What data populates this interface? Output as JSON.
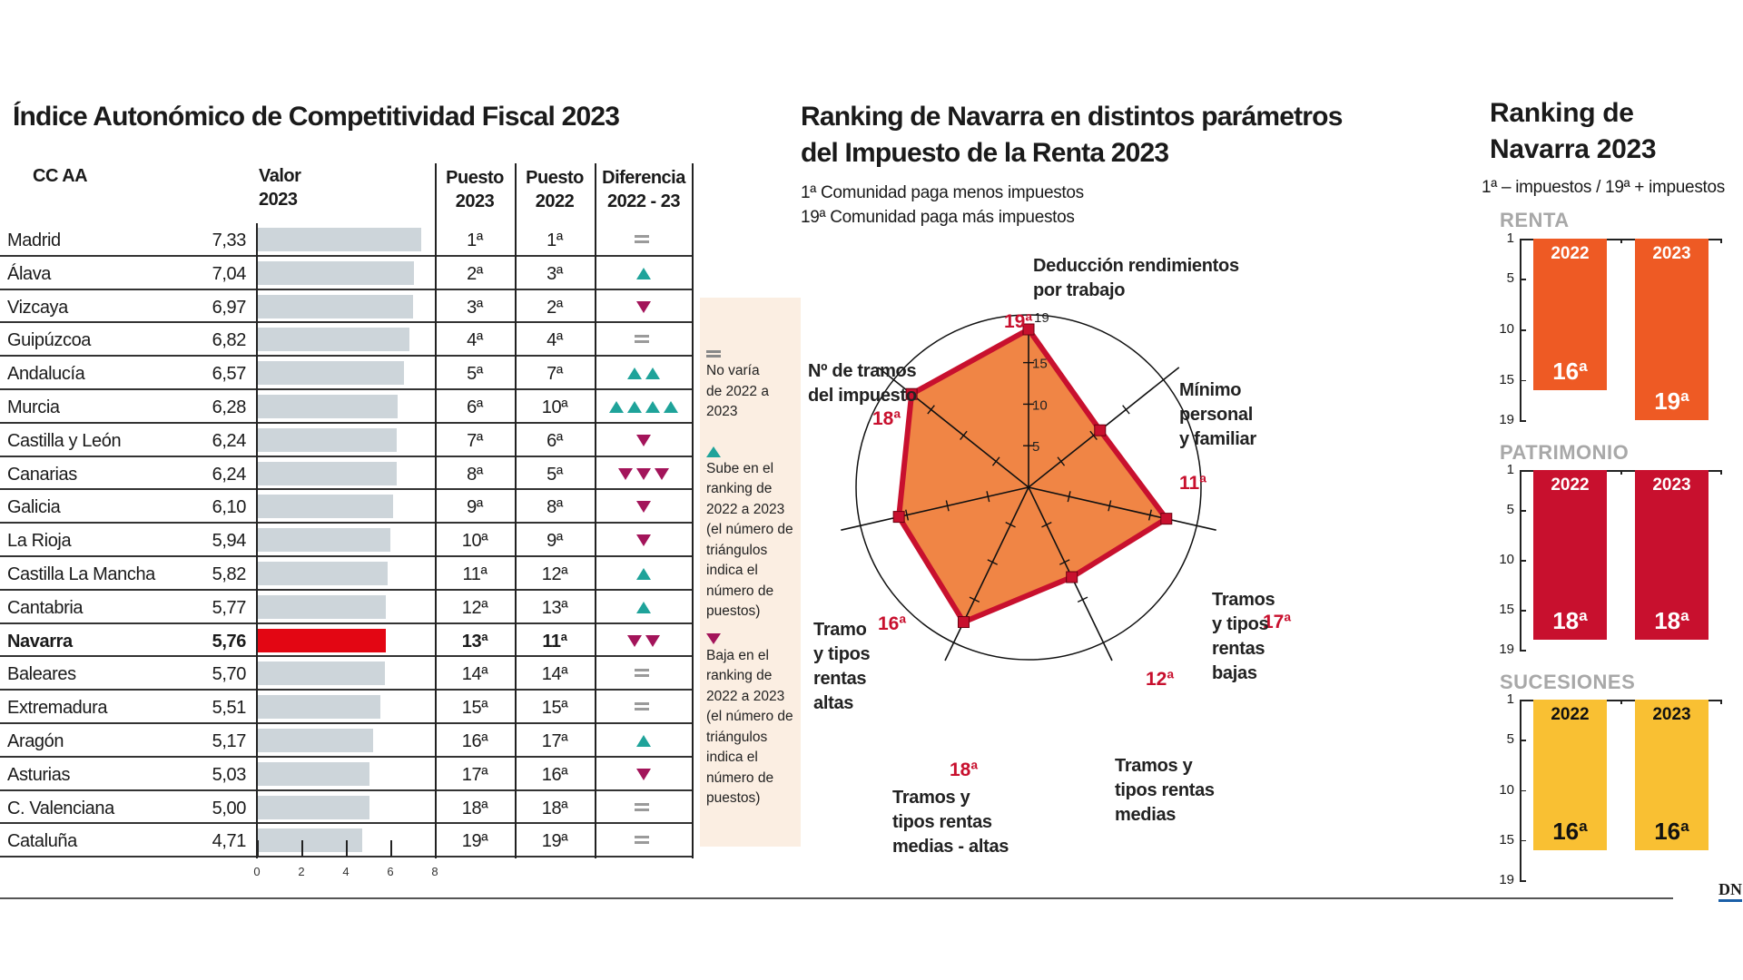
{
  "table": {
    "title": "Índice Autonómico de Competitividad Fiscal  2023",
    "headers": {
      "ccaa": "CC AA",
      "valor": [
        "Valor",
        "2023"
      ],
      "p2023": [
        "Puesto",
        "2023"
      ],
      "p2022": [
        "Puesto",
        "2022"
      ],
      "diff": [
        "Diferencia",
        "2022 - 23"
      ]
    },
    "axis_ticks": [
      "0",
      "2",
      "4",
      "6",
      "8"
    ],
    "bar_color": "#cdd5da",
    "highlight_color": "#e30613",
    "up_color": "#1fa39a",
    "down_color": "#a3145a",
    "equal_color": "#9a9a9a",
    "rows": [
      {
        "name": "Madrid",
        "value": 7.33,
        "value_label": "7,33",
        "p2023": "1ª",
        "p2022": "1ª",
        "diff": "equal",
        "count": 1
      },
      {
        "name": "Álava",
        "value": 7.04,
        "value_label": "7,04",
        "p2023": "2ª",
        "p2022": "3ª",
        "diff": "up",
        "count": 1
      },
      {
        "name": "Vizcaya",
        "value": 6.97,
        "value_label": "6,97",
        "p2023": "3ª",
        "p2022": "2ª",
        "diff": "down",
        "count": 1
      },
      {
        "name": "Guipúzcoa",
        "value": 6.82,
        "value_label": "6,82",
        "p2023": "4ª",
        "p2022": "4ª",
        "diff": "equal",
        "count": 1
      },
      {
        "name": "Andalucía",
        "value": 6.57,
        "value_label": "6,57",
        "p2023": "5ª",
        "p2022": "7ª",
        "diff": "up",
        "count": 2
      },
      {
        "name": "Murcia",
        "value": 6.28,
        "value_label": "6,28",
        "p2023": "6ª",
        "p2022": "10ª",
        "diff": "up",
        "count": 4
      },
      {
        "name": "Castilla y León",
        "value": 6.24,
        "value_label": "6,24",
        "p2023": "7ª",
        "p2022": "6ª",
        "diff": "down",
        "count": 1
      },
      {
        "name": "Canarias",
        "value": 6.24,
        "value_label": "6,24",
        "p2023": "8ª",
        "p2022": "5ª",
        "diff": "down",
        "count": 3
      },
      {
        "name": "Galicia",
        "value": 6.1,
        "value_label": "6,10",
        "p2023": "9ª",
        "p2022": "8ª",
        "diff": "down",
        "count": 1
      },
      {
        "name": "La Rioja",
        "value": 5.94,
        "value_label": "5,94",
        "p2023": "10ª",
        "p2022": "9ª",
        "diff": "down",
        "count": 1
      },
      {
        "name": "Castilla La Mancha",
        "value": 5.82,
        "value_label": "5,82",
        "p2023": "11ª",
        "p2022": "12ª",
        "diff": "up",
        "count": 1
      },
      {
        "name": "Cantabria",
        "value": 5.77,
        "value_label": "5,77",
        "p2023": "12ª",
        "p2022": "13ª",
        "diff": "up",
        "count": 1
      },
      {
        "name": "Navarra",
        "value": 5.76,
        "value_label": "5,76",
        "p2023": "13ª",
        "p2022": "11ª",
        "diff": "down",
        "count": 2,
        "highlight": true
      },
      {
        "name": "Baleares",
        "value": 5.7,
        "value_label": "5,70",
        "p2023": "14ª",
        "p2022": "14ª",
        "diff": "equal",
        "count": 1
      },
      {
        "name": "Extremadura",
        "value": 5.51,
        "value_label": "5,51",
        "p2023": "15ª",
        "p2022": "15ª",
        "diff": "equal",
        "count": 1
      },
      {
        "name": "Aragón",
        "value": 5.17,
        "value_label": "5,17",
        "p2023": "16ª",
        "p2022": "17ª",
        "diff": "up",
        "count": 1
      },
      {
        "name": "Asturias",
        "value": 5.03,
        "value_label": "5,03",
        "p2023": "17ª",
        "p2022": "16ª",
        "diff": "down",
        "count": 1
      },
      {
        "name": "C. Valenciana",
        "value": 5.0,
        "value_label": "5,00",
        "p2023": "18ª",
        "p2022": "18ª",
        "diff": "equal",
        "count": 1
      },
      {
        "name": "Cataluña",
        "value": 4.71,
        "value_label": "4,71",
        "p2023": "19ª",
        "p2022": "19ª",
        "diff": "equal",
        "count": 1
      }
    ]
  },
  "legend": {
    "equal": "No varía de 2022 a 2023",
    "up": "Sube en el ranking de 2022 a 2023 (el número de triángulos indica el número de puestos)",
    "down": "Baja en el ranking de 2022 a 2023 (el número de triángulos indica el número de puestos)"
  },
  "radar": {
    "title_line1": "Ranking de Navarra en distintos parámetros",
    "title_line2": "del Impuesto de la Renta  2023",
    "note1": "1ª Comunidad paga menos impuestos",
    "note2": "19ª Comunidad paga más impuestos"
  },
  "chart_data": [
    {
      "type": "bar",
      "title": "Índice Autonómico de Competitividad Fiscal  2023",
      "xlim": [
        0,
        8
      ],
      "categories": [
        "Madrid",
        "Álava",
        "Vizcaya",
        "Guipúzcoa",
        "Andalucía",
        "Murcia",
        "Castilla y León",
        "Canarias",
        "Galicia",
        "La Rioja",
        "Castilla La Mancha",
        "Cantabria",
        "Navarra",
        "Baleares",
        "Extremadura",
        "Aragón",
        "Asturias",
        "C. Valenciana",
        "Cataluña"
      ],
      "values": [
        7.33,
        7.04,
        6.97,
        6.82,
        6.57,
        6.28,
        6.24,
        6.24,
        6.1,
        5.94,
        5.82,
        5.77,
        5.76,
        5.7,
        5.51,
        5.17,
        5.03,
        5.0,
        4.71
      ]
    },
    {
      "type": "radar",
      "range": [
        0,
        19
      ],
      "ticks": [
        "5",
        "10",
        "15",
        "19"
      ],
      "fill": "#f08545",
      "stroke": "#c8102e",
      "axes": [
        {
          "label": [
            "Deducción rendimientos",
            "por trabajo"
          ],
          "value": 19,
          "value_label": "19ª"
        },
        {
          "label": [
            "Mínimo",
            "personal",
            "y familiar"
          ],
          "value": 11,
          "value_label": "11ª"
        },
        {
          "label": [
            "Tramos",
            "y tipos",
            "rentas",
            "bajas"
          ],
          "value": 17,
          "value_label": "17ª"
        },
        {
          "label": [
            "Tramos y",
            "tipos rentas",
            "medias"
          ],
          "value": 12,
          "value_label": "12ª"
        },
        {
          "label": [
            "Tramos y",
            "tipos rentas",
            "medias - altas"
          ],
          "value": 18,
          "value_label": "18ª"
        },
        {
          "label": [
            "Tramo",
            "y tipos",
            "rentas",
            "altas"
          ],
          "value": 16,
          "value_label": "16ª"
        },
        {
          "label": [
            "Nº de tramos",
            "del impuesto"
          ],
          "value": 18,
          "value_label": "18ª"
        }
      ]
    },
    {
      "type": "bar",
      "title": "Ranking de Navarra 2023",
      "subtitle": "1ª – impuestos / 19ª + impuestos",
      "ylim": [
        1,
        19
      ],
      "ticks": [
        "1",
        "5",
        "10",
        "15",
        "19"
      ],
      "categories": [
        "2022",
        "2023"
      ],
      "panels": [
        {
          "name": "RENTA",
          "color": "#ee5a24",
          "text_color": "#ffffff",
          "values": [
            16,
            19
          ],
          "labels": [
            "16ª",
            "19ª"
          ]
        },
        {
          "name": "PATRIMONIO",
          "color": "#c8102e",
          "text_color": "#ffffff",
          "values": [
            18,
            18
          ],
          "labels": [
            "18ª",
            "18ª"
          ]
        },
        {
          "name": "SUCESIONES",
          "color": "#f9c033",
          "text_color": "#111111",
          "values": [
            16,
            16
          ],
          "labels": [
            "16ª",
            "16ª"
          ]
        }
      ]
    }
  ],
  "right_title": [
    "Ranking de",
    "Navarra 2023"
  ],
  "logo": "DN"
}
